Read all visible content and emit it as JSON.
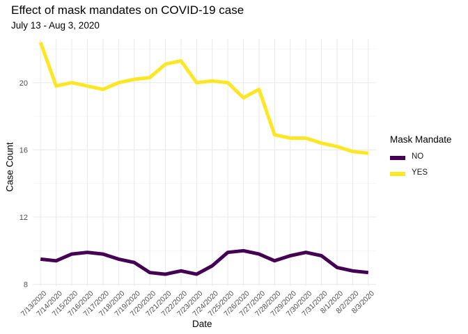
{
  "chart_data": {
    "type": "line",
    "title": "Effect of mask mandates on COVID-19 case",
    "subtitle": "July 13 - Aug 3, 2020",
    "xlabel": "Date",
    "ylabel": "Case Count",
    "legend_title": "Mask Mandate",
    "legend_position": "right",
    "grid": true,
    "ylim": [
      7.9,
      22.6
    ],
    "y_ticks": [
      8,
      12,
      16,
      20
    ],
    "x": [
      "7/13/2020",
      "7/14/2020",
      "7/15/2020",
      "7/16/2020",
      "7/17/2020",
      "7/18/2020",
      "7/19/2020",
      "7/20/2020",
      "7/21/2020",
      "7/22/2020",
      "7/23/2020",
      "7/24/2020",
      "7/25/2020",
      "7/26/2020",
      "7/27/2020",
      "7/28/2020",
      "7/29/2020",
      "7/30/2020",
      "7/31/2020",
      "8/1/2020",
      "8/2/2020",
      "8/3/2020"
    ],
    "series": [
      {
        "name": "NO",
        "color": "#440154",
        "values": [
          9.5,
          9.4,
          9.8,
          9.9,
          9.8,
          9.5,
          9.3,
          8.7,
          8.6,
          8.8,
          8.6,
          9.1,
          9.9,
          10.0,
          9.8,
          9.4,
          9.7,
          9.9,
          9.7,
          9.0,
          8.8,
          8.7
        ]
      },
      {
        "name": "YES",
        "color": "#FDE725",
        "values": [
          22.4,
          19.8,
          20.0,
          19.8,
          19.6,
          20.0,
          20.2,
          20.3,
          21.1,
          21.3,
          20.0,
          20.1,
          20.0,
          19.1,
          19.6,
          16.9,
          16.7,
          16.7,
          16.4,
          16.2,
          15.9,
          15.8
        ]
      }
    ]
  }
}
